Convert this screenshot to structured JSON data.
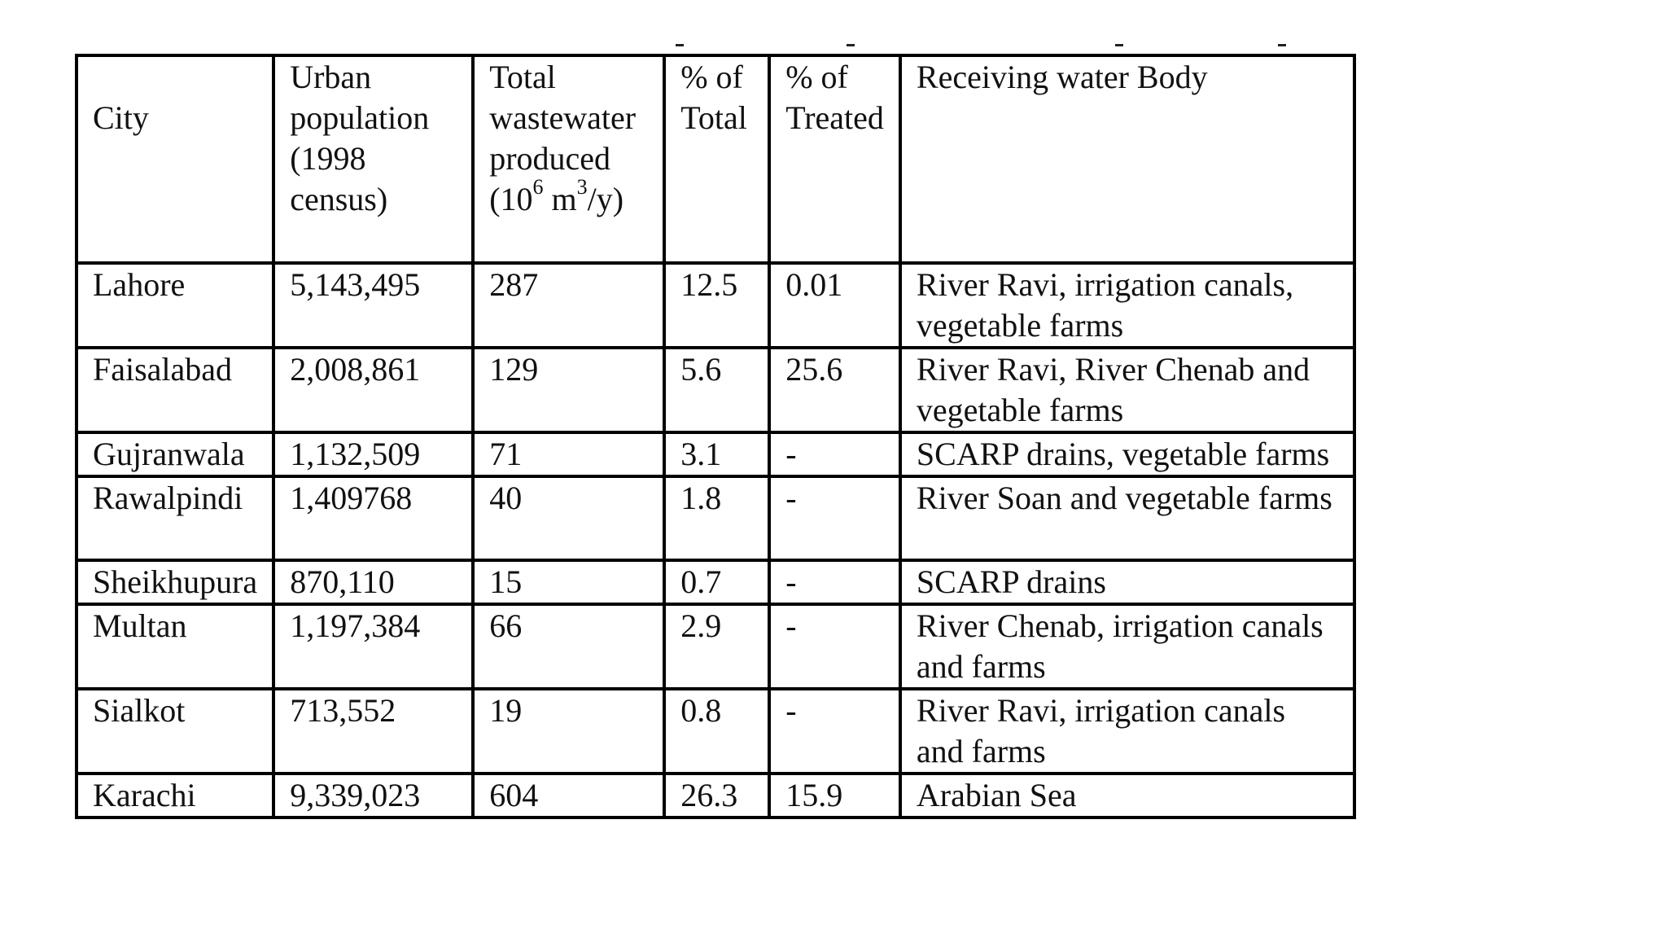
{
  "table": {
    "headers": {
      "city": "City",
      "urban_population": "Urban population (1998 census)",
      "total_wastewater_text": "Total wastewater produced",
      "total_wastewater_unit_open": "(10",
      "total_wastewater_unit_exp1": "6",
      "total_wastewater_unit_mid": " m",
      "total_wastewater_unit_exp2": "3",
      "total_wastewater_unit_close": "/y)",
      "pct_total": "% of Total",
      "pct_treated": "% of Treated",
      "receiving": "Receiving water Body"
    },
    "rows": [
      {
        "city": "Lahore",
        "population": "5,143,495",
        "wastewater": "287",
        "pct_total": "12.5",
        "pct_treated": "0.01",
        "receiving": "River Ravi, irrigation canals, vegetable farms"
      },
      {
        "city": "Faisalabad",
        "population": "2,008,861",
        "wastewater": "129",
        "pct_total": "5.6",
        "pct_treated": "25.6",
        "receiving": "River Ravi, River Chenab and vegetable farms"
      },
      {
        "city": "Gujranwala",
        "population": "1,132,509",
        "wastewater": "71",
        "pct_total": "3.1",
        "pct_treated": "-",
        "receiving": "SCARP drains, vegetable farms"
      },
      {
        "city": "Rawalpindi",
        "population": "1,409768",
        "wastewater": "40",
        "pct_total": "1.8",
        "pct_treated": "-",
        "receiving": "River Soan and vegetable farms"
      },
      {
        "city": "Sheikhupura",
        "population": "870,110",
        "wastewater": "15",
        "pct_total": "0.7",
        "pct_treated": "-",
        "receiving": "SCARP drains"
      },
      {
        "city": "Multan",
        "population": "1,197,384",
        "wastewater": "66",
        "pct_total": "2.9",
        "pct_treated": "-",
        "receiving": "River Chenab, irrigation canals and farms"
      },
      {
        "city": "Sialkot",
        "population": "713,552",
        "wastewater": "19",
        "pct_total": "0.8",
        "pct_treated": "-",
        "receiving": "River Ravi, irrigation canals and farms"
      },
      {
        "city": "Karachi",
        "population": "9,339,023",
        "wastewater": "604",
        "pct_total": "26.3",
        "pct_treated": "15.9",
        "receiving": "Arabian Sea"
      }
    ]
  }
}
